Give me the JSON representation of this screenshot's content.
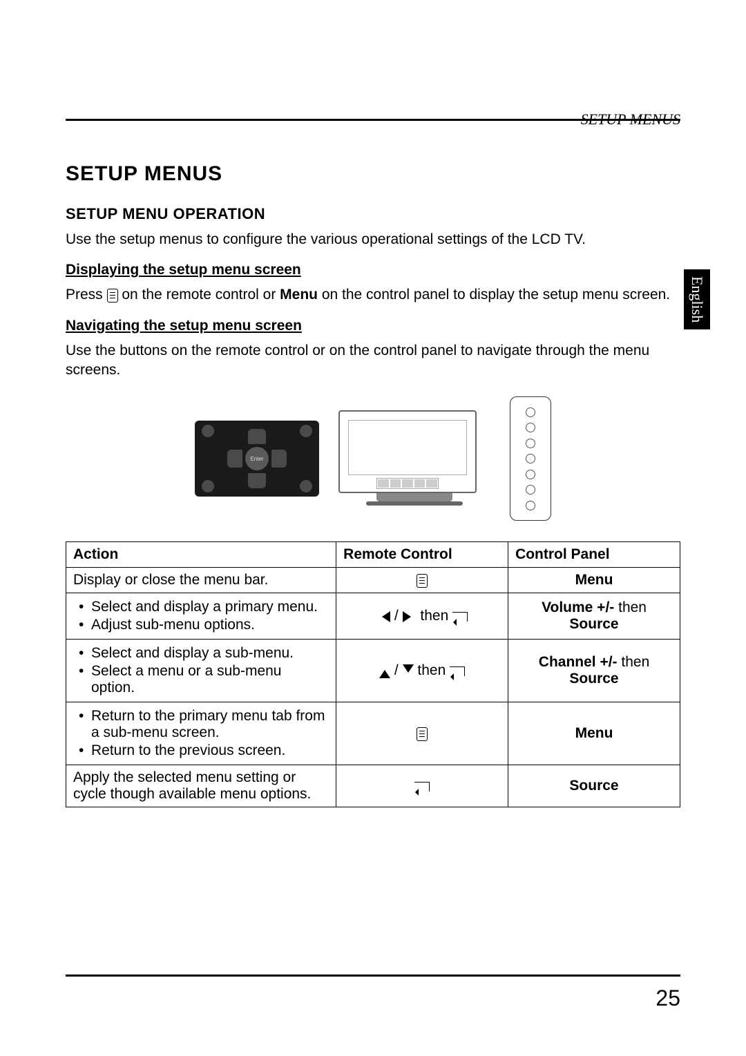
{
  "header": {
    "running_title": "SETUP MENUS"
  },
  "side_tab": "English",
  "section": {
    "title": "SETUP MENUS",
    "subsection_title": "SETUP MENU OPERATION",
    "intro": "Use the setup menus to configure the various operational settings of the LCD TV.",
    "display_heading": "Displaying the setup menu screen",
    "display_text_before": "Press ",
    "display_text_after": " on the remote control or ",
    "display_text_menu": "Menu",
    "display_text_tail": " on the control panel to display the setup menu screen.",
    "navigate_heading": "Navigating the setup menu screen",
    "navigate_text": "Use the buttons on the remote control or on the control panel to navigate through the menu screens."
  },
  "table": {
    "headers": {
      "action": "Action",
      "remote": "Remote Control",
      "panel": "Control Panel"
    },
    "rows": [
      {
        "action_plain": "Display or close the menu bar.",
        "remote_icon": "menu",
        "panel_bold": "Menu"
      },
      {
        "action_bullets": [
          "Select and display a primary menu.",
          "Adjust sub-menu options."
        ],
        "remote_composite": "lr_then_enter",
        "panel_before_bold": "Volume +/-",
        "panel_after": " then ",
        "panel_bold2": "Source"
      },
      {
        "action_bullets": [
          "Select and display a sub-menu.",
          "Select a menu or a sub-menu option."
        ],
        "remote_composite": "ud_then_enter",
        "panel_before_bold": "Channel +/-",
        "panel_after": " then ",
        "panel_bold2": "Source"
      },
      {
        "action_bullets": [
          "Return to the primary menu tab from a sub-menu screen.",
          "Return to the previous screen."
        ],
        "remote_icon": "menu",
        "panel_bold": "Menu"
      },
      {
        "action_plain": "Apply the selected menu setting or cycle though available menu options.",
        "remote_icon": "enter",
        "panel_bold": "Source"
      }
    ],
    "then_word": " then "
  },
  "page_number": "25",
  "colors": {
    "text": "#000000",
    "bg": "#ffffff",
    "tab_bg": "#000000",
    "tab_fg": "#ffffff"
  }
}
